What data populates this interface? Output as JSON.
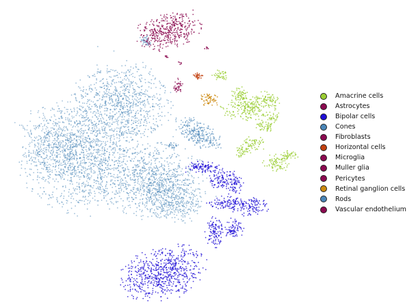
{
  "chart_data": {
    "type": "scatter",
    "title": "",
    "xlabel": "",
    "ylabel": "",
    "axes_visible": false,
    "grid": false,
    "legend_placement": "right",
    "series": [
      {
        "name": "Amacrine cells",
        "color": "#9ACD32"
      },
      {
        "name": "Astrocytes",
        "color": "#8B0A50"
      },
      {
        "name": "Bipolar cells",
        "color": "#1F0FD6"
      },
      {
        "name": "Cones",
        "color": "#4A86B8"
      },
      {
        "name": "Fibroblasts",
        "color": "#8B0A50"
      },
      {
        "name": "Horizontal cells",
        "color": "#C2400F"
      },
      {
        "name": "Microglia",
        "color": "#8B0A50"
      },
      {
        "name": "Muller glia",
        "color": "#8B0A50"
      },
      {
        "name": "Pericytes",
        "color": "#8B0A50"
      },
      {
        "name": "Retinal ganglion cells",
        "color": "#CC8A10"
      },
      {
        "name": "Rods",
        "color": "#4A86B8"
      },
      {
        "name": "Vascular endothelium",
        "color": "#8B0A50"
      }
    ]
  }
}
